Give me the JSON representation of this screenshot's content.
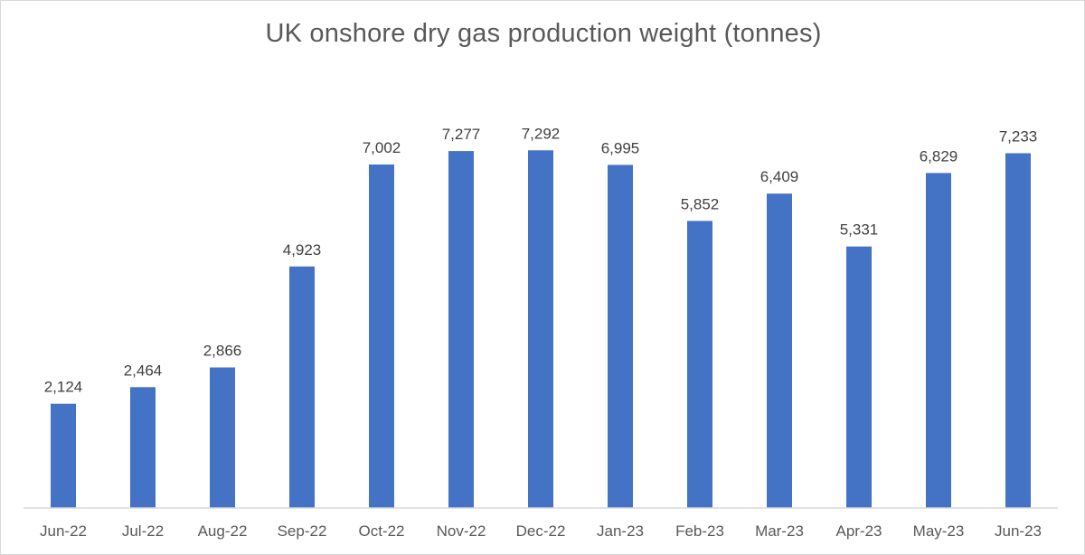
{
  "chart_data": {
    "type": "bar",
    "title": "UK onshore dry gas production weight (tonnes)",
    "xlabel": "",
    "ylabel": "",
    "categories": [
      "Jun-22",
      "Jul-22",
      "Aug-22",
      "Sep-22",
      "Oct-22",
      "Nov-22",
      "Dec-22",
      "Jan-23",
      "Feb-23",
      "Mar-23",
      "Apr-23",
      "May-23",
      "Jun-23"
    ],
    "values": [
      2124,
      2464,
      2866,
      4923,
      7002,
      7277,
      7292,
      6995,
      5852,
      6409,
      5331,
      6829,
      7233
    ],
    "data_labels": [
      "2,124",
      "2,464",
      "2,866",
      "4,923",
      "7,002",
      "7,277",
      "7,292",
      "6,995",
      "5,852",
      "6,409",
      "5,331",
      "6,829",
      "7,233"
    ],
    "ylim": [
      0,
      8000
    ],
    "grid": false,
    "legend": "none",
    "bar_color": "#4472C4"
  }
}
